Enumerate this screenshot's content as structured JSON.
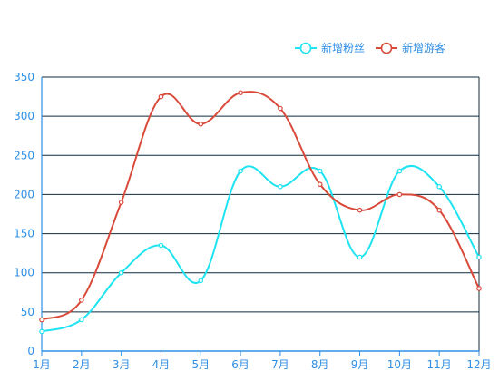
{
  "chart_data": {
    "type": "line",
    "smooth": true,
    "categories": [
      "1月",
      "2月",
      "3月",
      "4月",
      "5月",
      "6月",
      "7月",
      "8月",
      "9月",
      "10月",
      "11月",
      "12月"
    ],
    "series": [
      {
        "name": "新增粉丝",
        "color": "#1ee3f0",
        "values": [
          25,
          40,
          100,
          135,
          90,
          230,
          210,
          230,
          120,
          230,
          210,
          120
        ]
      },
      {
        "name": "新增游客",
        "color": "#d94a3b",
        "values": [
          40,
          65,
          190,
          325,
          290,
          330,
          310,
          213,
          180,
          200,
          180,
          80
        ]
      }
    ],
    "ylim": [
      0,
      350
    ],
    "yticks": [
      "0",
      "50",
      "100",
      "150",
      "200",
      "250",
      "300",
      "350"
    ],
    "grid": true,
    "legend": "top-right",
    "axis_color": "#2f8fe6",
    "grid_color": "#0d2b3e"
  }
}
